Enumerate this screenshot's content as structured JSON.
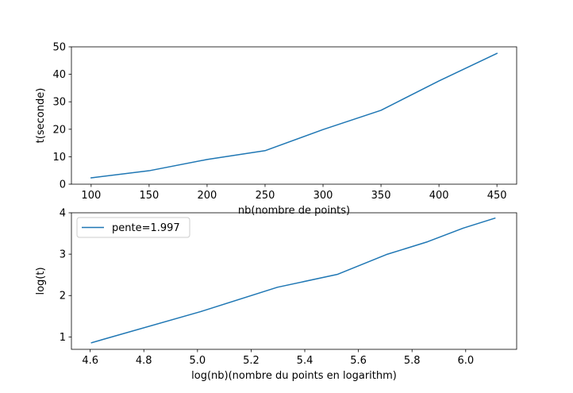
{
  "chart_data": [
    {
      "type": "line",
      "title": "",
      "xlabel": "nb(nombre de points)",
      "ylabel": "t(seconde)",
      "xlim": [
        83,
        467
      ],
      "ylim": [
        0,
        50
      ],
      "xticks": [
        100,
        150,
        200,
        250,
        300,
        350,
        400,
        450
      ],
      "yticks": [
        0,
        10,
        20,
        30,
        40,
        50
      ],
      "grid": false,
      "series": [
        {
          "color": "#1f77b4",
          "x": [
            100,
            150,
            200,
            250,
            300,
            350,
            400,
            450
          ],
          "y": [
            2.3,
            4.9,
            9.0,
            12.2,
            19.9,
            26.9,
            37.6,
            47.6
          ]
        }
      ]
    },
    {
      "type": "line",
      "title": "",
      "xlabel": "log(nb)(nombre du points en logarithm)",
      "ylabel": "log(t)",
      "xlim": [
        4.53,
        6.19
      ],
      "ylim": [
        0.7,
        4.0
      ],
      "xticks": [
        4.6,
        4.8,
        5.0,
        5.2,
        5.4,
        5.6,
        5.8,
        6.0
      ],
      "yticks": [
        1,
        2,
        3,
        4
      ],
      "grid": false,
      "legend": {
        "position": "top-left",
        "entries": [
          "pente=1.997"
        ]
      },
      "series": [
        {
          "name": "pente=1.997",
          "color": "#1f77b4",
          "x": [
            4.605,
            5.011,
            5.298,
            5.521,
            5.704,
            5.858,
            5.991,
            6.109
          ],
          "y": [
            0.86,
            1.61,
            2.2,
            2.51,
            2.99,
            3.3,
            3.63,
            3.87
          ]
        }
      ]
    }
  ]
}
